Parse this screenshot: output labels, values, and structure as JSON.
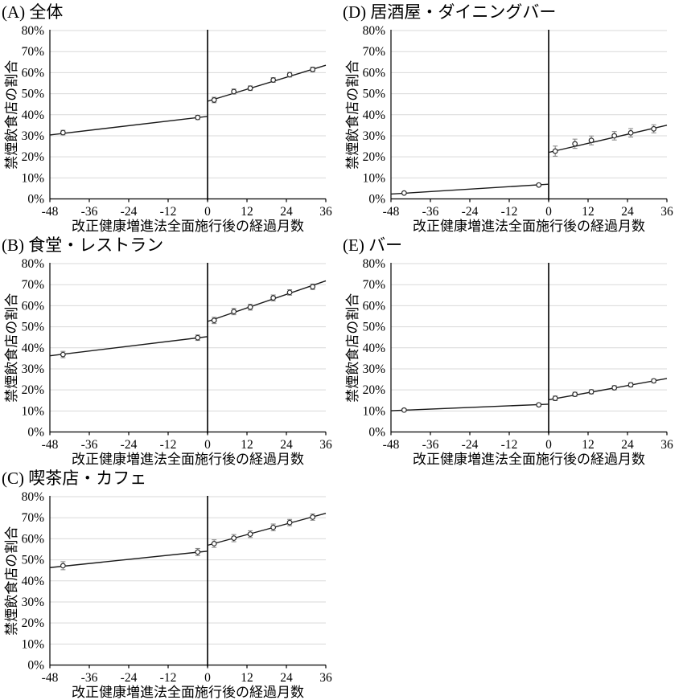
{
  "page": {
    "background": "#ffffff"
  },
  "shared": {
    "ylabel": "禁煙飲食店の割合",
    "xlabel": "改正健康増進法全面施行後の経過月数",
    "ylim": [
      0,
      80
    ],
    "ytick_step": 10,
    "ytick_suffix": "%",
    "xlim": [
      -48,
      36
    ],
    "xticks": [
      -48,
      -36,
      -24,
      -12,
      0,
      12,
      24,
      36
    ],
    "vline_x": 0,
    "grid": true,
    "legend": "none",
    "colors": {
      "axis": "#000000",
      "gridline": "#d9d9d9",
      "fit_line": "#1a1a1a",
      "marker_stroke": "#2b2b2b",
      "marker_fill": "#ffffff",
      "error_bar": "#808080",
      "vline": "#000000"
    }
  },
  "chart_data": [
    {
      "panel": "A",
      "type": "scatter",
      "title": "(A) 全体",
      "x": [
        -44,
        -3,
        2,
        8,
        13,
        20,
        25,
        32
      ],
      "y": [
        31.5,
        38.7,
        47.0,
        51.0,
        52.6,
        56.5,
        59.0,
        61.5
      ],
      "yerr": [
        1.1,
        1.0,
        1.3,
        1.2,
        1.1,
        1.1,
        1.1,
        1.1
      ],
      "fit_pre": {
        "x": [
          -48,
          0
        ],
        "y": [
          30.4,
          39.2
        ]
      },
      "fit_post": {
        "x": [
          0,
          36
        ],
        "y": [
          46.4,
          63.5
        ]
      }
    },
    {
      "panel": "B",
      "type": "scatter",
      "title": "(B) 食堂・レストラン",
      "x": [
        -44,
        -3,
        2,
        8,
        13,
        20,
        25,
        32
      ],
      "y": [
        36.8,
        44.8,
        53.0,
        57.2,
        59.3,
        63.7,
        66.3,
        69.0
      ],
      "yerr": [
        1.5,
        1.3,
        1.5,
        1.5,
        1.4,
        1.4,
        1.3,
        1.3
      ],
      "fit_pre": {
        "x": [
          -48,
          0
        ],
        "y": [
          36.2,
          45.3
        ]
      },
      "fit_post": {
        "x": [
          0,
          36
        ],
        "y": [
          52.5,
          71.8
        ]
      }
    },
    {
      "panel": "C",
      "type": "scatter",
      "title": "(C) 喫茶店・カフェ",
      "x": [
        -44,
        -3,
        2,
        8,
        13,
        20,
        25,
        32
      ],
      "y": [
        47.2,
        53.7,
        57.7,
        60.3,
        62.2,
        65.4,
        67.7,
        70.3
      ],
      "yerr": [
        1.9,
        1.7,
        1.8,
        1.7,
        1.6,
        1.6,
        1.5,
        1.5
      ],
      "fit_pre": {
        "x": [
          -48,
          0
        ],
        "y": [
          46.3,
          54.1
        ]
      },
      "fit_post": {
        "x": [
          0,
          36
        ],
        "y": [
          56.9,
          72.1
        ]
      }
    },
    {
      "panel": "D",
      "type": "scatter",
      "title": "(D) 居酒屋・ダイニングバー",
      "x": [
        -44,
        -3,
        2,
        8,
        13,
        20,
        25,
        32
      ],
      "y": [
        2.8,
        6.6,
        22.7,
        26.2,
        27.8,
        30.0,
        31.4,
        33.3
      ],
      "yerr": [
        0.4,
        0.5,
        2.4,
        2.2,
        2.1,
        2.0,
        2.0,
        1.9
      ],
      "fit_pre": {
        "x": [
          -48,
          0
        ],
        "y": [
          2.3,
          7.0
        ]
      },
      "fit_post": {
        "x": [
          0,
          36
        ],
        "y": [
          22.1,
          35.0
        ]
      }
    },
    {
      "panel": "E",
      "type": "scatter",
      "title": "(E) バー",
      "x": [
        -44,
        -3,
        2,
        8,
        13,
        20,
        25,
        32
      ],
      "y": [
        10.4,
        12.9,
        16.0,
        17.9,
        19.1,
        21.0,
        22.4,
        24.3
      ],
      "yerr": [
        0.6,
        0.7,
        1.1,
        1.0,
        1.0,
        1.0,
        1.0,
        0.9
      ],
      "fit_pre": {
        "x": [
          -48,
          0
        ],
        "y": [
          10.1,
          13.2
        ]
      },
      "fit_post": {
        "x": [
          0,
          36
        ],
        "y": [
          15.3,
          25.4
        ]
      }
    }
  ]
}
